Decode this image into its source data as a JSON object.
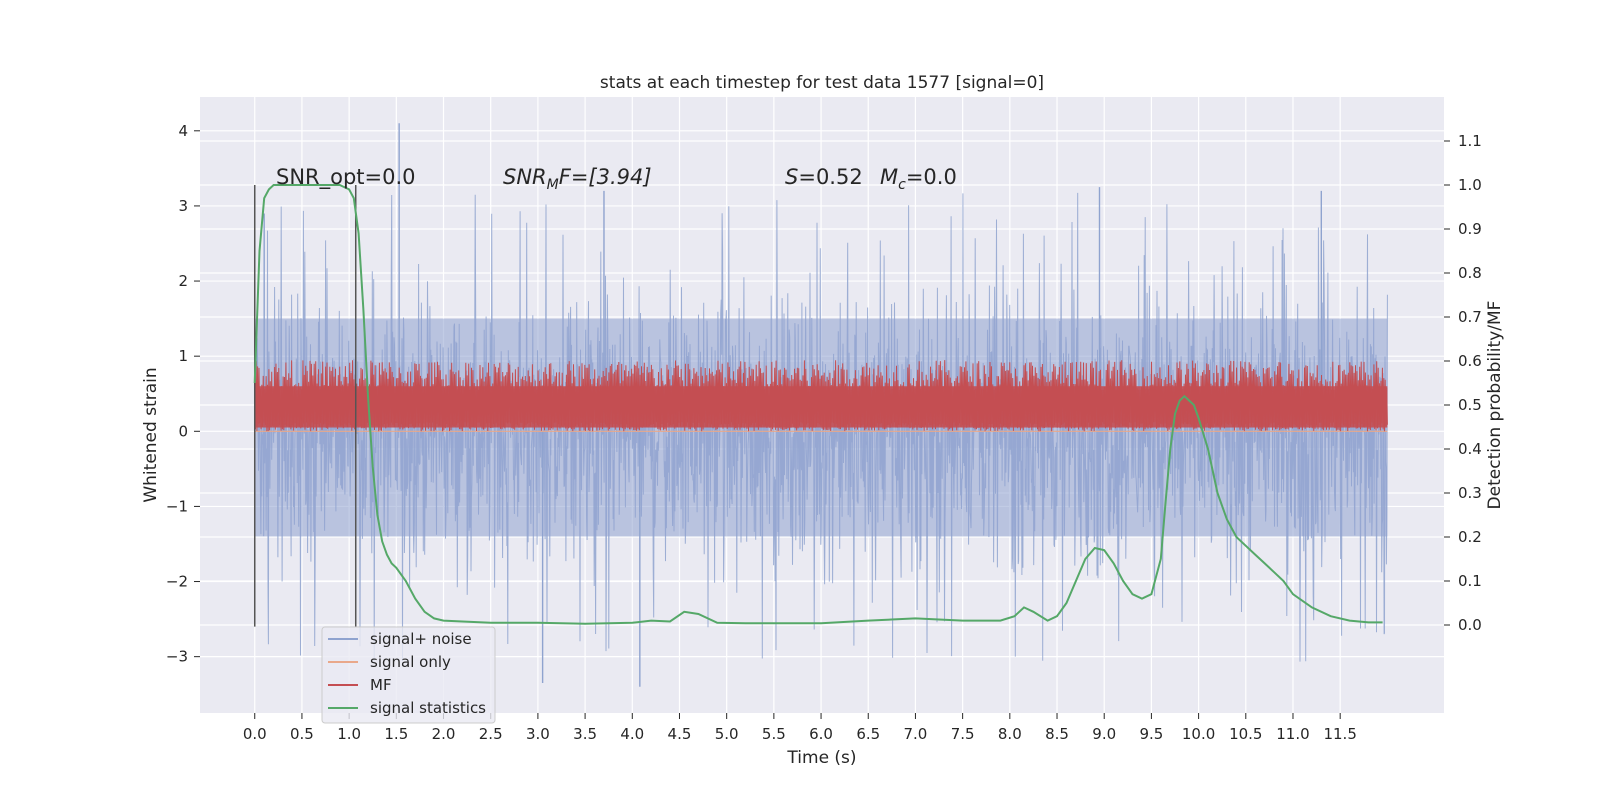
{
  "chart_data": {
    "type": "line",
    "title": "stats at each timestep for test data 1577 [signal=0]",
    "xlabel": "Time (s)",
    "ylabel": "Whitened strain",
    "y2label": "Detection probability/MF",
    "xlim": [
      -0.58,
      12.6
    ],
    "ylim": [
      -3.75,
      4.45
    ],
    "y2lim": [
      -0.2,
      1.2
    ],
    "xticks": [
      "0.0",
      "0.5",
      "1.0",
      "1.5",
      "2.0",
      "2.5",
      "3.0",
      "3.5",
      "4.0",
      "4.5",
      "5.0",
      "5.5",
      "6.0",
      "6.5",
      "7.0",
      "7.5",
      "8.0",
      "8.5",
      "9.0",
      "9.5",
      "10.0",
      "10.5",
      "11.0",
      "11.5"
    ],
    "yticks": [
      "−3",
      "−2",
      "−1",
      "0",
      "1",
      "2",
      "3",
      "4"
    ],
    "y2ticks": [
      "0.0",
      "0.1",
      "0.2",
      "0.3",
      "0.4",
      "0.5",
      "0.6",
      "0.7",
      "0.8",
      "0.9",
      "1.0",
      "1.1"
    ],
    "grid": true,
    "legend_position": "lower-left",
    "annotations": {
      "snr_opt": "SNR_opt=0.0",
      "snr_mf_main": "SNR",
      "snr_mf_sub": "M",
      "snr_mf_rest": "F=[3.94]",
      "s_var": "S",
      "s_rest": "=0.52",
      "mc_var": "M",
      "mc_sub": "c",
      "mc_rest": "=0.0"
    },
    "vlines_x": [
      0.0,
      1.07
    ],
    "series": [
      {
        "name": "signal+ noise",
        "color": "#8fa3cf",
        "style": "dense noise",
        "x_range": [
          0.0,
          12.0
        ],
        "y_core_range": [
          -1.4,
          1.5
        ],
        "y_peak_max": 4.1,
        "y_peak_min": -3.4
      },
      {
        "name": "signal only",
        "color": "#e9a88a",
        "values_note": "flat at 0",
        "y": 0.0
      },
      {
        "name": "MF",
        "color": "#c44e52",
        "style": "dense band",
        "x_range": [
          0.0,
          12.0
        ],
        "y_range": [
          0.0,
          0.95
        ]
      },
      {
        "name": "signal statistics",
        "color": "#55a868",
        "axis": "right",
        "x": [
          0.0,
          0.05,
          0.1,
          0.15,
          0.2,
          0.3,
          0.5,
          0.7,
          0.9,
          1.0,
          1.05,
          1.1,
          1.15,
          1.2,
          1.25,
          1.3,
          1.35,
          1.4,
          1.45,
          1.5,
          1.6,
          1.7,
          1.8,
          1.9,
          2.0,
          2.2,
          2.5,
          3.0,
          3.5,
          4.0,
          4.2,
          4.4,
          4.55,
          4.7,
          4.9,
          5.2,
          6.0,
          6.5,
          7.0,
          7.5,
          7.9,
          8.05,
          8.15,
          8.25,
          8.4,
          8.5,
          8.6,
          8.7,
          8.8,
          8.9,
          9.0,
          9.1,
          9.2,
          9.3,
          9.4,
          9.5,
          9.6,
          9.65,
          9.7,
          9.75,
          9.8,
          9.85,
          9.9,
          9.95,
          10.0,
          10.1,
          10.2,
          10.3,
          10.4,
          10.5,
          10.6,
          10.7,
          10.8,
          10.9,
          11.0,
          11.2,
          11.4,
          11.6,
          11.8,
          11.95
        ],
        "values": [
          0.55,
          0.85,
          0.97,
          0.99,
          1.0,
          1.0,
          1.0,
          1.0,
          1.0,
          0.99,
          0.97,
          0.89,
          0.72,
          0.52,
          0.36,
          0.25,
          0.19,
          0.16,
          0.14,
          0.13,
          0.1,
          0.06,
          0.03,
          0.015,
          0.01,
          0.008,
          0.005,
          0.005,
          0.003,
          0.005,
          0.01,
          0.008,
          0.03,
          0.025,
          0.005,
          0.004,
          0.004,
          0.01,
          0.015,
          0.01,
          0.01,
          0.02,
          0.04,
          0.03,
          0.01,
          0.02,
          0.05,
          0.1,
          0.15,
          0.175,
          0.17,
          0.14,
          0.1,
          0.07,
          0.06,
          0.07,
          0.15,
          0.28,
          0.4,
          0.48,
          0.51,
          0.52,
          0.51,
          0.5,
          0.47,
          0.4,
          0.3,
          0.24,
          0.2,
          0.18,
          0.16,
          0.14,
          0.12,
          0.1,
          0.07,
          0.04,
          0.02,
          0.01,
          0.006,
          0.006
        ]
      }
    ]
  }
}
